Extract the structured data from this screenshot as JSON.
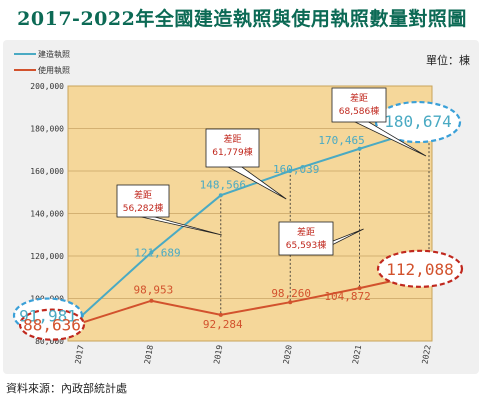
{
  "title": "2017-2022年全國建造執照與使用執照數量對照圖",
  "unit_label": "單位：棟",
  "source": "資料來源：內政部統計處",
  "colors": {
    "construction": "#4aaac3",
    "usage": "#d2522d",
    "plot_bg": "#f5d79a",
    "blue_ellipse": "#3aa0d8",
    "red_ellipse": "#c0281e",
    "title": "#0c6a55"
  },
  "chart_data": {
    "type": "line",
    "x": [
      "2017",
      "2018",
      "2019",
      "2020",
      "2021",
      "2022"
    ],
    "ylim": [
      80000,
      200000
    ],
    "yticks": [
      "80,000",
      "100,000",
      "120,000",
      "140,000",
      "160,000",
      "180,000",
      "200,000"
    ],
    "series": [
      {
        "name": "建造執照",
        "values": [
          91981,
          121689,
          148566,
          160039,
          170465,
          180674
        ],
        "labels": [
          "91,981",
          "121,689",
          "148,566",
          "160,039",
          "170,465",
          "180,674"
        ]
      },
      {
        "name": "使用執照",
        "values": [
          88636,
          98953,
          92284,
          98260,
          104872,
          112088
        ],
        "labels": [
          "88,636",
          "98,953",
          "92,284",
          "98,260",
          "104,872",
          "112,088"
        ]
      }
    ],
    "annotations": [
      {
        "line1": "差距",
        "line2": "56,282棟"
      },
      {
        "line1": "差距",
        "line2": "61,779棟"
      },
      {
        "line1": "差距",
        "line2": "65,593棟"
      },
      {
        "line1": "差距",
        "line2": "68,586棟"
      }
    ]
  }
}
